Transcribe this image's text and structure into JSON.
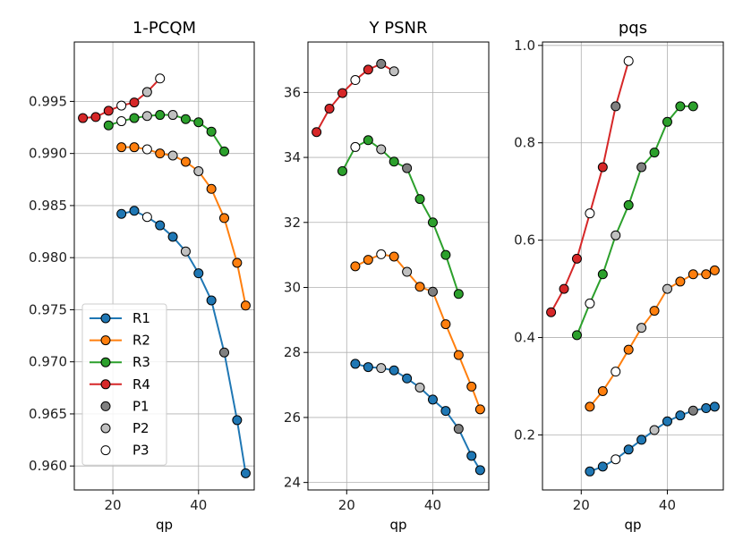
{
  "figure": {
    "legend": [
      {
        "label": "R1",
        "kind": "line",
        "color": "#1f77b4"
      },
      {
        "label": "R2",
        "kind": "line",
        "color": "#ff7f0e"
      },
      {
        "label": "R3",
        "kind": "line",
        "color": "#2ca02c"
      },
      {
        "label": "R4",
        "kind": "line",
        "color": "#d62728"
      },
      {
        "label": "P1",
        "kind": "marker",
        "color": "#808080"
      },
      {
        "label": "P2",
        "kind": "marker",
        "color": "#c0c0c0"
      },
      {
        "label": "P3",
        "kind": "marker",
        "color": "#ffffff"
      }
    ]
  },
  "chart_data": [
    {
      "type": "line",
      "title": "1-PCQM",
      "xlabel": "qp",
      "ylabel": "",
      "xlim": [
        11,
        53
      ],
      "ylim": [
        0.9577,
        1.0007
      ],
      "xticks": [
        20,
        40
      ],
      "yticks": [
        0.96,
        0.965,
        0.97,
        0.975,
        0.98,
        0.985,
        0.99,
        0.995
      ],
      "ytick_labels": [
        "0.960",
        "0.965",
        "0.970",
        "0.975",
        "0.980",
        "0.985",
        "0.990",
        "0.995"
      ],
      "grid": true,
      "legend_position": "lower-left",
      "series": [
        {
          "name": "R1",
          "color": "#1f77b4",
          "x": [
            22,
            25,
            28,
            31,
            34,
            37,
            40,
            43,
            46,
            49,
            51
          ],
          "y": [
            0.9842,
            0.9845,
            0.9839,
            0.9831,
            0.982,
            0.9806,
            0.9785,
            0.9759,
            0.9709,
            0.9644,
            0.9593
          ],
          "marker_fill": [
            "#1f77b4",
            "#1f77b4",
            "#ffffff",
            "#1f77b4",
            "#1f77b4",
            "#c0c0c0",
            "#1f77b4",
            "#1f77b4",
            "#808080",
            "#1f77b4",
            "#1f77b4"
          ]
        },
        {
          "name": "R2",
          "color": "#ff7f0e",
          "x": [
            22,
            25,
            28,
            31,
            34,
            37,
            40,
            43,
            46,
            49,
            51
          ],
          "y": [
            0.9906,
            0.9906,
            0.9904,
            0.99,
            0.9898,
            0.9892,
            0.9883,
            0.9866,
            0.9838,
            0.9795,
            0.9754
          ],
          "marker_fill": [
            "#ff7f0e",
            "#ff7f0e",
            "#ffffff",
            "#ff7f0e",
            "#c0c0c0",
            "#ff7f0e",
            "#c0c0c0",
            "#ff7f0e",
            "#ff7f0e",
            "#ff7f0e",
            "#ff7f0e"
          ]
        },
        {
          "name": "R3",
          "color": "#2ca02c",
          "x": [
            19,
            22,
            25,
            28,
            31,
            34,
            37,
            40,
            43,
            46
          ],
          "y": [
            0.9927,
            0.9931,
            0.9934,
            0.9936,
            0.9937,
            0.9937,
            0.9933,
            0.993,
            0.9921,
            0.9902
          ],
          "marker_fill": [
            "#2ca02c",
            "#ffffff",
            "#2ca02c",
            "#c0c0c0",
            "#2ca02c",
            "#c0c0c0",
            "#2ca02c",
            "#2ca02c",
            "#2ca02c",
            "#2ca02c"
          ]
        },
        {
          "name": "R4",
          "color": "#d62728",
          "x": [
            13,
            16,
            19,
            22,
            25,
            28,
            31
          ],
          "y": [
            0.9934,
            0.9935,
            0.9941,
            0.9946,
            0.9949,
            0.9959,
            0.9972
          ],
          "marker_fill": [
            "#d62728",
            "#d62728",
            "#d62728",
            "#ffffff",
            "#d62728",
            "#c0c0c0",
            "#ffffff"
          ]
        }
      ]
    },
    {
      "type": "line",
      "title": "Y PSNR",
      "xlabel": "qp",
      "ylabel": "",
      "xlim": [
        11,
        53
      ],
      "ylim": [
        23.77,
        37.55
      ],
      "xticks": [
        20,
        40
      ],
      "yticks": [
        24,
        26,
        28,
        30,
        32,
        34,
        36
      ],
      "ytick_labels": [
        "24",
        "26",
        "28",
        "30",
        "32",
        "34",
        "36"
      ],
      "grid": true,
      "series": [
        {
          "name": "R1",
          "color": "#1f77b4",
          "x": [
            22,
            25,
            28,
            31,
            34,
            37,
            40,
            43,
            46,
            49,
            51
          ],
          "y": [
            27.65,
            27.55,
            27.52,
            27.45,
            27.2,
            26.92,
            26.55,
            26.2,
            25.65,
            24.82,
            24.38
          ],
          "marker_fill": [
            "#1f77b4",
            "#1f77b4",
            "#c0c0c0",
            "#1f77b4",
            "#1f77b4",
            "#c0c0c0",
            "#1f77b4",
            "#1f77b4",
            "#808080",
            "#1f77b4",
            "#1f77b4"
          ]
        },
        {
          "name": "R2",
          "color": "#ff7f0e",
          "x": [
            22,
            25,
            28,
            31,
            34,
            37,
            40,
            43,
            46,
            49,
            51
          ],
          "y": [
            30.65,
            30.85,
            31.02,
            30.95,
            30.48,
            30.02,
            29.87,
            28.87,
            27.92,
            26.95,
            26.25
          ],
          "marker_fill": [
            "#ff7f0e",
            "#ff7f0e",
            "#ffffff",
            "#ff7f0e",
            "#c0c0c0",
            "#ff7f0e",
            "#808080",
            "#ff7f0e",
            "#ff7f0e",
            "#ff7f0e",
            "#ff7f0e"
          ]
        },
        {
          "name": "R3",
          "color": "#2ca02c",
          "x": [
            19,
            22,
            25,
            28,
            31,
            34,
            37,
            40,
            43,
            46
          ],
          "y": [
            33.58,
            34.32,
            34.53,
            34.25,
            33.87,
            33.67,
            32.72,
            32.0,
            31.0,
            29.8
          ],
          "marker_fill": [
            "#2ca02c",
            "#ffffff",
            "#2ca02c",
            "#c0c0c0",
            "#2ca02c",
            "#808080",
            "#2ca02c",
            "#2ca02c",
            "#2ca02c",
            "#2ca02c"
          ]
        },
        {
          "name": "R4",
          "color": "#d62728",
          "x": [
            13,
            16,
            19,
            22,
            25,
            28,
            31
          ],
          "y": [
            34.78,
            35.5,
            35.98,
            36.38,
            36.7,
            36.88,
            36.65
          ],
          "marker_fill": [
            "#d62728",
            "#d62728",
            "#d62728",
            "#ffffff",
            "#d62728",
            "#808080",
            "#c0c0c0"
          ]
        }
      ]
    },
    {
      "type": "line",
      "title": "pqs",
      "xlabel": "qp",
      "ylabel": "",
      "xlim": [
        11,
        53
      ],
      "ylim": [
        0.087,
        1.007
      ],
      "xticks": [
        20,
        40
      ],
      "yticks": [
        0.2,
        0.4,
        0.6,
        0.8,
        1.0
      ],
      "ytick_labels": [
        "0.2",
        "0.4",
        "0.6",
        "0.8",
        "1.0"
      ],
      "grid": true,
      "series": [
        {
          "name": "R1",
          "color": "#1f77b4",
          "x": [
            22,
            25,
            28,
            31,
            34,
            37,
            40,
            43,
            46,
            49,
            51
          ],
          "y": [
            0.125,
            0.135,
            0.15,
            0.17,
            0.19,
            0.21,
            0.228,
            0.24,
            0.25,
            0.255,
            0.258
          ],
          "marker_fill": [
            "#1f77b4",
            "#1f77b4",
            "#ffffff",
            "#1f77b4",
            "#1f77b4",
            "#c0c0c0",
            "#1f77b4",
            "#1f77b4",
            "#808080",
            "#1f77b4",
            "#1f77b4"
          ]
        },
        {
          "name": "R2",
          "color": "#ff7f0e",
          "x": [
            22,
            25,
            28,
            31,
            34,
            37,
            40,
            43,
            46,
            49,
            51
          ],
          "y": [
            0.258,
            0.29,
            0.33,
            0.375,
            0.42,
            0.455,
            0.5,
            0.515,
            0.53,
            0.53,
            0.538
          ],
          "marker_fill": [
            "#ff7f0e",
            "#ff7f0e",
            "#ffffff",
            "#ff7f0e",
            "#c0c0c0",
            "#ff7f0e",
            "#c0c0c0",
            "#ff7f0e",
            "#ff7f0e",
            "#ff7f0e",
            "#ff7f0e"
          ]
        },
        {
          "name": "R3",
          "color": "#2ca02c",
          "x": [
            19,
            22,
            25,
            28,
            31,
            34,
            37,
            40,
            43,
            46
          ],
          "y": [
            0.405,
            0.47,
            0.53,
            0.61,
            0.672,
            0.75,
            0.78,
            0.843,
            0.875,
            0.875
          ],
          "marker_fill": [
            "#2ca02c",
            "#ffffff",
            "#2ca02c",
            "#c0c0c0",
            "#2ca02c",
            "#808080",
            "#2ca02c",
            "#2ca02c",
            "#2ca02c",
            "#2ca02c"
          ]
        },
        {
          "name": "R4",
          "color": "#d62728",
          "x": [
            13,
            16,
            19,
            22,
            25,
            28,
            31
          ],
          "y": [
            0.452,
            0.5,
            0.562,
            0.655,
            0.75,
            0.875,
            0.968
          ],
          "marker_fill": [
            "#d62728",
            "#d62728",
            "#d62728",
            "#ffffff",
            "#d62728",
            "#808080",
            "#ffffff"
          ]
        }
      ]
    }
  ]
}
